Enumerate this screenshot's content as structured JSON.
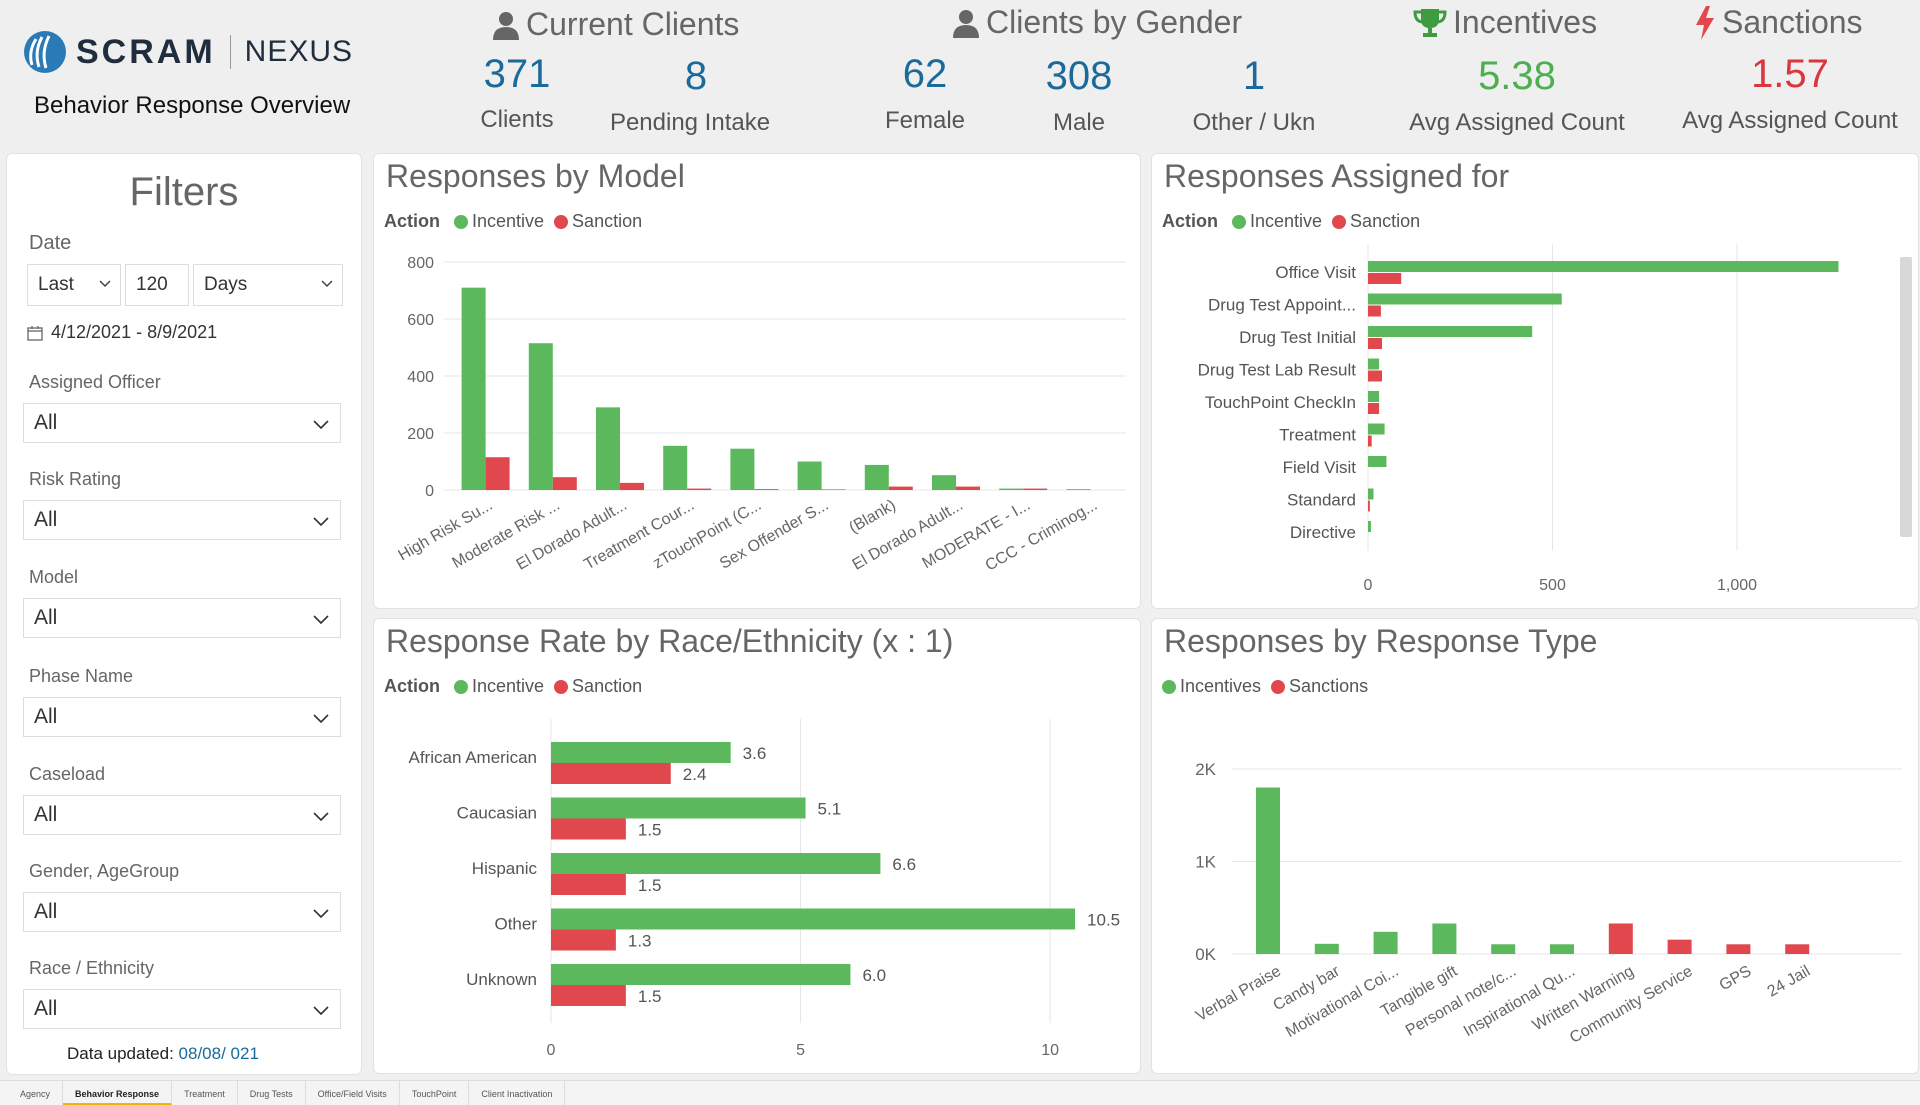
{
  "header": {
    "brand_left": "SCRAM",
    "brand_right": "NEXUS",
    "subtitle": "Behavior Response Overview",
    "current_clients": {
      "title": "Current Clients",
      "clients_value": "371",
      "clients_label": "Clients",
      "pending_value": "8",
      "pending_label": "Pending Intake"
    },
    "gender": {
      "title": "Clients by Gender",
      "female_value": "62",
      "female_label": "Female",
      "male_value": "308",
      "male_label": "Male",
      "other_value": "1",
      "other_label": "Other / Ukn"
    },
    "incentives": {
      "title": "Incentives",
      "value": "5.38",
      "label": "Avg Assigned Count"
    },
    "sanctions": {
      "title": "Sanctions",
      "value": "1.57",
      "label": "Avg Assigned Count"
    }
  },
  "colors": {
    "incentive": "#5cb85c",
    "sanction": "#e0484d",
    "kpi_blue": "#1a6a9a"
  },
  "filters": {
    "title": "Filters",
    "date_label": "Date",
    "date_relative": "Last",
    "date_amount": "120",
    "date_unit": "Days",
    "date_range": "4/12/2021 - 8/9/2021",
    "assigned_officer_label": "Assigned Officer",
    "assigned_officer_value": "All",
    "risk_rating_label": "Risk Rating",
    "risk_rating_value": "All",
    "model_label": "Model",
    "model_value": "All",
    "phase_name_label": "Phase Name",
    "phase_name_value": "All",
    "caseload_label": "Caseload",
    "caseload_value": "All",
    "gender_agegroup_label": "Gender, AgeGroup",
    "gender_agegroup_value": "All",
    "race_label": "Race / Ethnicity",
    "race_value": "All",
    "data_updated_label": "Data updated:",
    "data_updated_value": "08/08/ 021"
  },
  "legend": {
    "title": "Action",
    "incentive": "Incentive",
    "sanction": "Sanction",
    "incentives": "Incentives",
    "sanctions": "Sanctions"
  },
  "chart_data": [
    {
      "type": "bar",
      "title": "Responses by Model",
      "categories": [
        "High Risk Su...",
        "Moderate Risk ...",
        "El Dorado Adult...",
        "Treatment Cour...",
        "zTouchPoint (C...",
        "Sex Offender S...",
        "(Blank)",
        "El Dorado Adult...",
        "MODERATE - I...",
        "CCC - Criminog..."
      ],
      "series": [
        {
          "name": "Incentive",
          "values": [
            710,
            515,
            290,
            155,
            145,
            100,
            88,
            52,
            5,
            3
          ]
        },
        {
          "name": "Sanction",
          "values": [
            115,
            45,
            25,
            5,
            3,
            2,
            12,
            12,
            5,
            0
          ]
        }
      ],
      "yticks": [
        "0",
        "200",
        "400",
        "600",
        "800"
      ],
      "ylim": [
        0,
        800
      ],
      "grid": true
    },
    {
      "type": "bar",
      "orientation": "horizontal",
      "title": "Responses Assigned for",
      "categories": [
        "Office Visit",
        "Drug Test Appoint...",
        "Drug Test Initial",
        "Drug Test Lab Result",
        "TouchPoint CheckIn",
        "Treatment",
        "Field Visit",
        "Standard",
        "Directive"
      ],
      "series": [
        {
          "name": "Incentive",
          "values": [
            1275,
            525,
            445,
            30,
            30,
            45,
            50,
            15,
            8
          ]
        },
        {
          "name": "Sanction",
          "values": [
            90,
            35,
            38,
            38,
            30,
            10,
            0,
            5,
            0
          ]
        }
      ],
      "xticks": [
        "0",
        "500",
        "1,000"
      ],
      "xlim": [
        0,
        1420
      ],
      "grid": true
    },
    {
      "type": "bar",
      "orientation": "horizontal",
      "title": "Response Rate by Race/Ethnicity (x : 1)",
      "categories": [
        "African American",
        "Caucasian",
        "Hispanic",
        "Other",
        "Unknown"
      ],
      "series": [
        {
          "name": "Incentive",
          "values": [
            3.6,
            5.1,
            6.6,
            10.5,
            6.0
          ],
          "labels": [
            "3.6",
            "5.1",
            "6.6",
            "10.5",
            "6.0"
          ]
        },
        {
          "name": "Sanction",
          "values": [
            2.4,
            1.5,
            1.5,
            1.3,
            1.5
          ],
          "labels": [
            "2.4",
            "1.5",
            "1.5",
            "1.3",
            "1.5"
          ]
        }
      ],
      "xticks": [
        "0",
        "5",
        "10"
      ],
      "xlim": [
        0,
        11
      ],
      "grid": true
    },
    {
      "type": "bar",
      "title": "Responses by Response Type",
      "categories": [
        "Verbal Praise",
        "Candy bar",
        "Motivational Coi...",
        "Tangible gift",
        "Personal note/c...",
        "Inspirational Qu...",
        "Written Warning",
        "Community Service",
        "GPS",
        "24 Jail"
      ],
      "values": [
        1800,
        110,
        240,
        330,
        105,
        105,
        330,
        155,
        105,
        105
      ],
      "groups": [
        "Incentives",
        "Incentives",
        "Incentives",
        "Incentives",
        "Incentives",
        "Incentives",
        "Sanctions",
        "Sanctions",
        "Sanctions",
        "Sanctions"
      ],
      "yticks": [
        "0K",
        "1K",
        "2K"
      ],
      "ylim": [
        0,
        2000
      ],
      "grid": true
    }
  ],
  "tabs": [
    "Agency",
    "Behavior Response",
    "Treatment",
    "Drug Tests",
    "Office/Field Visits",
    "TouchPoint",
    "Client Inactivation"
  ],
  "active_tab": "Behavior Response"
}
